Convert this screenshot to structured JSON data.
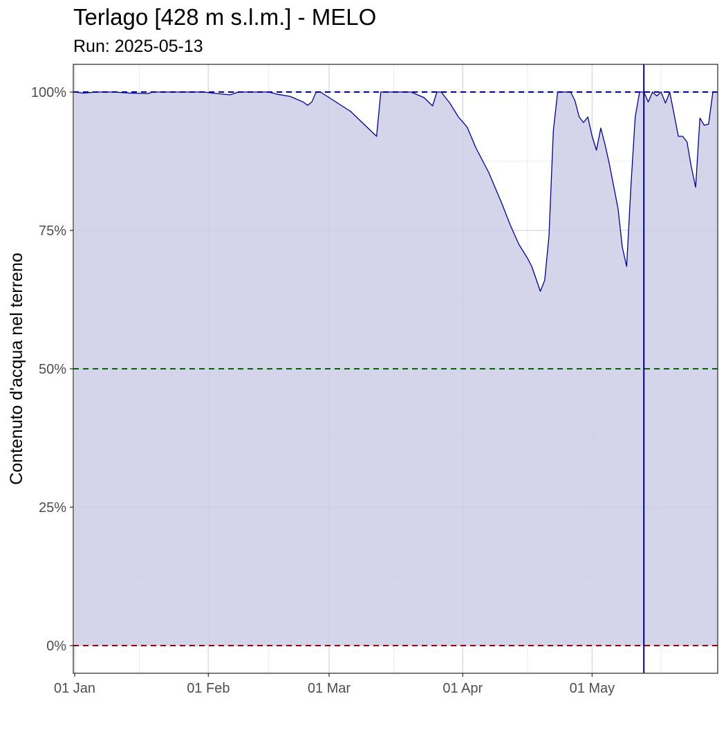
{
  "chart_data": {
    "type": "area",
    "title": "Terlago [428 m s.l.m.] - MELO",
    "subtitle": "Run: 2025-05-13",
    "ylabel": "Contenuto d'acqua nel terreno",
    "xlabel": "",
    "x_range": [
      "2025-01-01",
      "2025-05-29"
    ],
    "ylim": [
      -0.05,
      1.05
    ],
    "grid": true,
    "x_ticks": [
      {
        "date": "2025-01-01",
        "label": "01 Jan"
      },
      {
        "date": "2025-02-01",
        "label": "01 Feb"
      },
      {
        "date": "2025-03-01",
        "label": "01 Mar"
      },
      {
        "date": "2025-04-01",
        "label": "01 Apr"
      },
      {
        "date": "2025-05-01",
        "label": "01 May"
      }
    ],
    "y_ticks": [
      {
        "value": 0,
        "label": "0%"
      },
      {
        "value": 0.25,
        "label": "25%"
      },
      {
        "value": 0.5,
        "label": "50%"
      },
      {
        "value": 0.75,
        "label": "75%"
      },
      {
        "value": 1.0,
        "label": "100%"
      }
    ],
    "reference_lines": [
      {
        "value": 1.0,
        "color": "#00008b",
        "style": "dashed"
      },
      {
        "value": 0.5,
        "color": "#006400",
        "style": "dashed"
      },
      {
        "value": 0.0,
        "color": "#8b0000",
        "style": "dashed"
      }
    ],
    "run_date_line": {
      "date": "2025-05-13",
      "color": "#00008b"
    },
    "series": [
      {
        "line_color": "#00008b",
        "fill_color": "#cccce8",
        "points": [
          [
            "2025-01-01",
            1.0
          ],
          [
            "2025-01-03",
            0.998
          ],
          [
            "2025-01-06",
            1.0
          ],
          [
            "2025-01-10",
            1.0
          ],
          [
            "2025-01-14",
            0.998
          ],
          [
            "2025-01-18",
            0.997
          ],
          [
            "2025-01-19",
            1.0
          ],
          [
            "2025-01-25",
            1.0
          ],
          [
            "2025-01-31",
            1.0
          ],
          [
            "2025-02-02",
            0.998
          ],
          [
            "2025-02-06",
            0.995
          ],
          [
            "2025-02-08",
            1.0
          ],
          [
            "2025-02-15",
            1.0
          ],
          [
            "2025-02-17",
            0.996
          ],
          [
            "2025-02-20",
            0.992
          ],
          [
            "2025-02-23",
            0.982
          ],
          [
            "2025-02-24",
            0.976
          ],
          [
            "2025-02-25",
            0.982
          ],
          [
            "2025-02-26",
            1.0
          ],
          [
            "2025-02-27",
            1.0
          ],
          [
            "2025-03-01",
            0.99
          ],
          [
            "2025-03-03",
            0.98
          ],
          [
            "2025-03-06",
            0.965
          ],
          [
            "2025-03-08",
            0.95
          ],
          [
            "2025-03-10",
            0.935
          ],
          [
            "2025-03-12",
            0.92
          ],
          [
            "2025-03-13",
            1.0
          ],
          [
            "2025-03-20",
            1.0
          ],
          [
            "2025-03-23",
            0.99
          ],
          [
            "2025-03-25",
            0.975
          ],
          [
            "2025-03-26",
            1.0
          ],
          [
            "2025-03-27",
            1.0
          ],
          [
            "2025-03-29",
            0.98
          ],
          [
            "2025-03-31",
            0.955
          ],
          [
            "2025-04-02",
            0.937
          ],
          [
            "2025-04-04",
            0.9
          ],
          [
            "2025-04-07",
            0.855
          ],
          [
            "2025-04-10",
            0.8
          ],
          [
            "2025-04-12",
            0.76
          ],
          [
            "2025-04-14",
            0.725
          ],
          [
            "2025-04-16",
            0.7
          ],
          [
            "2025-04-17",
            0.685
          ],
          [
            "2025-04-19",
            0.64
          ],
          [
            "2025-04-20",
            0.66
          ],
          [
            "2025-04-21",
            0.74
          ],
          [
            "2025-04-22",
            0.93
          ],
          [
            "2025-04-23",
            1.0
          ],
          [
            "2025-04-26",
            1.0
          ],
          [
            "2025-04-27",
            0.985
          ],
          [
            "2025-04-28",
            0.955
          ],
          [
            "2025-04-29",
            0.945
          ],
          [
            "2025-04-30",
            0.955
          ],
          [
            "2025-05-01",
            0.92
          ],
          [
            "2025-05-02",
            0.895
          ],
          [
            "2025-05-03",
            0.935
          ],
          [
            "2025-05-04",
            0.905
          ],
          [
            "2025-05-05",
            0.87
          ],
          [
            "2025-05-07",
            0.79
          ],
          [
            "2025-05-08",
            0.72
          ],
          [
            "2025-05-09",
            0.685
          ],
          [
            "2025-05-10",
            0.83
          ],
          [
            "2025-05-11",
            0.955
          ],
          [
            "2025-05-12",
            1.0
          ],
          [
            "2025-05-13",
            1.0
          ],
          [
            "2025-05-14",
            0.982
          ],
          [
            "2025-05-15",
            1.0
          ],
          [
            "2025-05-16",
            0.993
          ],
          [
            "2025-05-17",
            1.0
          ],
          [
            "2025-05-18",
            0.98
          ],
          [
            "2025-05-19",
            1.0
          ],
          [
            "2025-05-20",
            0.96
          ],
          [
            "2025-05-21",
            0.92
          ],
          [
            "2025-05-22",
            0.92
          ],
          [
            "2025-05-23",
            0.91
          ],
          [
            "2025-05-24",
            0.865
          ],
          [
            "2025-05-25",
            0.828
          ],
          [
            "2025-05-26",
            0.953
          ],
          [
            "2025-05-27",
            0.94
          ],
          [
            "2025-05-28",
            0.942
          ],
          [
            "2025-05-29",
            1.0
          ],
          [
            "2025-05-31",
            1.0
          ],
          [
            "2025-06-01",
            0.945
          ]
        ]
      }
    ]
  }
}
